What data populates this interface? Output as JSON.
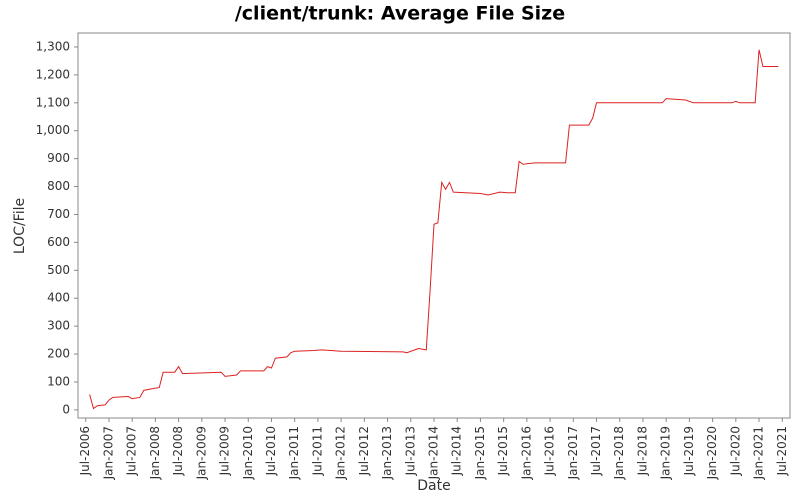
{
  "chart_data": {
    "type": "line",
    "title": "/client/trunk: Average File Size",
    "xlabel": "Date",
    "ylabel": "LOC/File",
    "x": [
      "2006-08",
      "2006-09",
      "2006-10",
      "2006-12",
      "2007-01",
      "2007-02",
      "2007-06",
      "2007-07",
      "2007-09",
      "2007-10",
      "2008-01",
      "2008-02",
      "2008-03",
      "2008-06",
      "2008-07",
      "2008-08",
      "2009-06",
      "2009-07",
      "2009-10",
      "2009-11",
      "2010-05",
      "2010-06",
      "2010-07",
      "2010-08",
      "2010-11",
      "2010-12",
      "2011-01",
      "2011-06",
      "2011-08",
      "2012-01",
      "2013-05",
      "2013-06",
      "2013-08",
      "2013-09",
      "2013-11",
      "2013-12",
      "2014-01",
      "2014-02",
      "2014-03",
      "2014-04",
      "2014-05",
      "2014-06",
      "2015-01",
      "2015-03",
      "2015-06",
      "2015-08",
      "2015-10",
      "2015-11",
      "2015-12",
      "2016-03",
      "2016-11",
      "2016-12",
      "2017-05",
      "2017-06",
      "2017-07",
      "2018-12",
      "2019-01",
      "2019-06",
      "2019-08",
      "2020-06",
      "2020-07",
      "2020-08",
      "2020-12",
      "2021-01",
      "2021-02",
      "2021-06"
    ],
    "series": [
      {
        "name": "LOC/File",
        "color": "#dd2222",
        "values": [
          55,
          5,
          15,
          18,
          35,
          45,
          48,
          40,
          45,
          70,
          78,
          80,
          135,
          135,
          155,
          130,
          135,
          120,
          125,
          140,
          140,
          155,
          150,
          185,
          190,
          205,
          210,
          213,
          215,
          210,
          208,
          205,
          215,
          220,
          215,
          430,
          665,
          670,
          815,
          790,
          815,
          780,
          775,
          770,
          780,
          778,
          778,
          890,
          880,
          885,
          885,
          1020,
          1020,
          1045,
          1100,
          1100,
          1115,
          1110,
          1100,
          1100,
          1105,
          1100,
          1100,
          1290,
          1230,
          1230
        ]
      }
    ],
    "xlim": [
      "2006-05",
      "2021-09"
    ],
    "xticks": [
      {
        "value": "2006-07",
        "label": "Jul-2006"
      },
      {
        "value": "2007-01",
        "label": "Jan-2007"
      },
      {
        "value": "2007-07",
        "label": "Jul-2007"
      },
      {
        "value": "2008-01",
        "label": "Jan-2008"
      },
      {
        "value": "2008-07",
        "label": "Jul-2008"
      },
      {
        "value": "2009-01",
        "label": "Jan-2009"
      },
      {
        "value": "2009-07",
        "label": "Jul-2009"
      },
      {
        "value": "2010-01",
        "label": "Jan-2010"
      },
      {
        "value": "2010-07",
        "label": "Jul-2010"
      },
      {
        "value": "2011-01",
        "label": "Jan-2011"
      },
      {
        "value": "2011-07",
        "label": "Jul-2011"
      },
      {
        "value": "2012-01",
        "label": "Jan-2012"
      },
      {
        "value": "2012-07",
        "label": "Jul-2012"
      },
      {
        "value": "2013-01",
        "label": "Jan-2013"
      },
      {
        "value": "2013-07",
        "label": "Jul-2013"
      },
      {
        "value": "2014-01",
        "label": "Jan-2014"
      },
      {
        "value": "2014-07",
        "label": "Jul-2014"
      },
      {
        "value": "2015-01",
        "label": "Jan-2015"
      },
      {
        "value": "2015-07",
        "label": "Jul-2015"
      },
      {
        "value": "2016-01",
        "label": "Jan-2016"
      },
      {
        "value": "2016-07",
        "label": "Jul-2016"
      },
      {
        "value": "2017-01",
        "label": "Jan-2017"
      },
      {
        "value": "2017-07",
        "label": "Jul-2017"
      },
      {
        "value": "2018-01",
        "label": "Jan-2018"
      },
      {
        "value": "2018-07",
        "label": "Jul-2018"
      },
      {
        "value": "2019-01",
        "label": "Jan-2019"
      },
      {
        "value": "2019-07",
        "label": "Jul-2019"
      },
      {
        "value": "2020-01",
        "label": "Jan-2020"
      },
      {
        "value": "2020-07",
        "label": "Jul-2020"
      },
      {
        "value": "2021-01",
        "label": "Jan-2021"
      },
      {
        "value": "2021-07",
        "label": "Jul-2021"
      }
    ],
    "ylim": [
      -29,
      1350
    ],
    "yticks": [
      0,
      100,
      200,
      300,
      400,
      500,
      600,
      700,
      800,
      900,
      {
        "value": 1000,
        "label": "1,000"
      },
      {
        "value": 1100,
        "label": "1,100"
      },
      {
        "value": 1200,
        "label": "1,200"
      },
      {
        "value": 1300,
        "label": "1,300"
      }
    ],
    "grid": false
  }
}
